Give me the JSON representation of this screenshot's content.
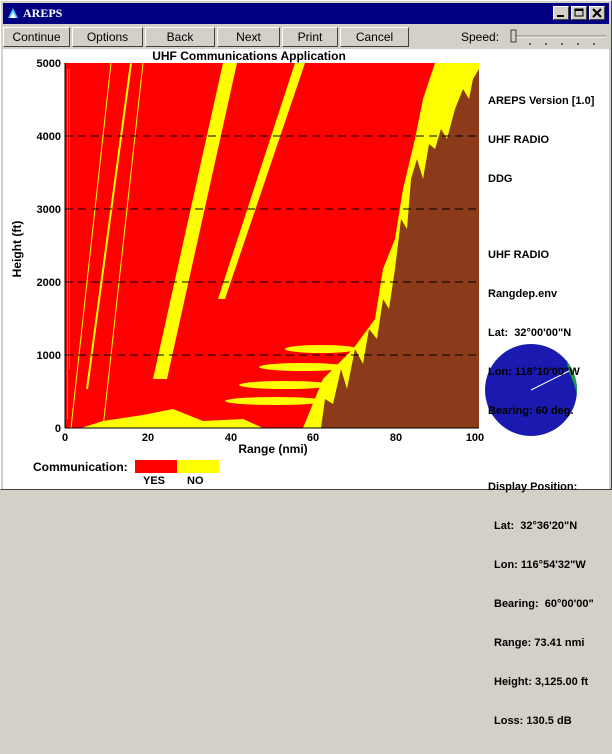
{
  "window": {
    "title": "AREPS"
  },
  "toolbar": {
    "buttons": [
      "Continue",
      "Options",
      "Back",
      "Next",
      "Print",
      "Cancel"
    ],
    "speed_label": "Speed:"
  },
  "plot": {
    "title": "UHF Communications Application",
    "xlabel": "Range (nmi)",
    "ylabel": "Height (ft)",
    "x_ticks": [
      "0",
      "20",
      "40",
      "60",
      "80",
      "100"
    ],
    "y_ticks": [
      "0",
      "1000",
      "2000",
      "3000",
      "4000",
      "5000"
    ]
  },
  "info_panel": {
    "version": "AREPS Version [1.0]",
    "system": "UHF RADIO",
    "platform": "DDG",
    "sensor": "UHF RADIO",
    "env_file": "Rangdep.env",
    "lat": "Lat:  32°00'00\"N",
    "lon": "Lon: 118°10'00\"W",
    "bearing": "Bearing: 60 deg.",
    "display_position_label": "Display Position:",
    "dp_lat": "Lat:  32°36'20\"N",
    "dp_lon": "Lon: 116°54'32\"W",
    "dp_bearing": "Bearing:  60°00'00\"",
    "dp_range": "Range: 73.41 nmi",
    "dp_height": "Height: 3,125.00 ft",
    "dp_loss": "Loss: 130.5 dB"
  },
  "legend": {
    "label": "Communication:",
    "yes": "YES",
    "no": "NO"
  },
  "colors": {
    "yes": "#ff0000",
    "no": "#ffff00",
    "terrain": "#8b3a1a",
    "titlebar": "#000080"
  }
}
